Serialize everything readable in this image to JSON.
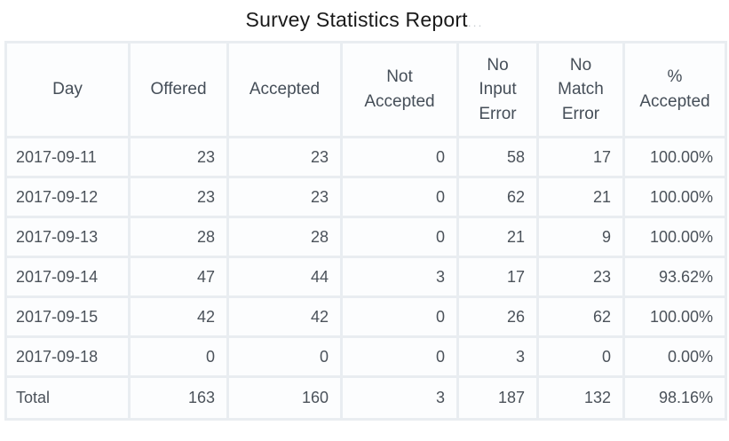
{
  "title": {
    "text": "Survey Statistics Report",
    "suffix": "..."
  },
  "table": {
    "columns": [
      "Day",
      "Offered",
      "Accepted",
      "Not\nAccepted",
      "No\nInput\nError",
      "No\nMatch\nError",
      "%\nAccepted"
    ],
    "rows": [
      [
        "2017-09-11",
        "23",
        "23",
        "0",
        "58",
        "17",
        "100.00%"
      ],
      [
        "2017-09-12",
        "23",
        "23",
        "0",
        "62",
        "21",
        "100.00%"
      ],
      [
        "2017-09-13",
        "28",
        "28",
        "0",
        "21",
        "9",
        "100.00%"
      ],
      [
        "2017-09-14",
        "47",
        "44",
        "3",
        "17",
        "23",
        "93.62%"
      ],
      [
        "2017-09-15",
        "42",
        "42",
        "0",
        "26",
        "62",
        "100.00%"
      ],
      [
        "2017-09-18",
        "0",
        "0",
        "0",
        "3",
        "0",
        "0.00%"
      ]
    ],
    "total": [
      "Total",
      "163",
      "160",
      "3",
      "187",
      "132",
      "98.16%"
    ]
  },
  "colors": {
    "border": "#e9edf1",
    "cell_background": "#fcfdfe",
    "header_text": "#454e58",
    "body_text": "#4b525a",
    "title_text": "#1a1a1a"
  }
}
